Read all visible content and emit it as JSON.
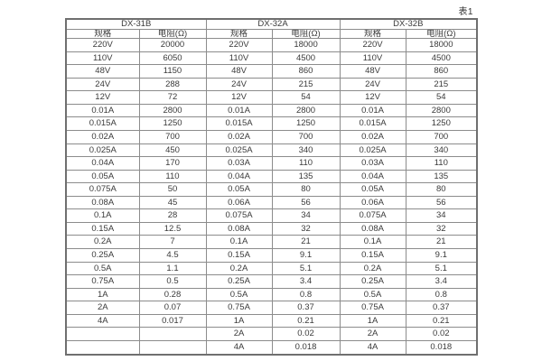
{
  "page": {
    "caption": "表1"
  },
  "colors": {
    "background": "#ffffff",
    "border_outer": "#6f6f6f",
    "border_inner": "#8c8c8c",
    "text": "#3a3a3a"
  },
  "table": {
    "col_headers": [
      "规格",
      "电阻(Ω)"
    ],
    "groups": [
      {
        "name": "DX-31B",
        "rows": [
          [
            "220V",
            "20000"
          ],
          [
            "110V",
            "6050"
          ],
          [
            "48V",
            "1150"
          ],
          [
            "24V",
            "288"
          ],
          [
            "12V",
            "72"
          ],
          [
            "0.01A",
            "2800"
          ],
          [
            "0.015A",
            "1250"
          ],
          [
            "0.02A",
            "700"
          ],
          [
            "0.025A",
            "450"
          ],
          [
            "0.04A",
            "170"
          ],
          [
            "0.05A",
            "110"
          ],
          [
            "0.075A",
            "50"
          ],
          [
            "0.08A",
            "45"
          ],
          [
            "0.1A",
            "28"
          ],
          [
            "0.15A",
            "12.5"
          ],
          [
            "0.2A",
            "7"
          ],
          [
            "0.25A",
            "4.5"
          ],
          [
            "0.5A",
            "1.1"
          ],
          [
            "0.75A",
            "0.5"
          ],
          [
            "1A",
            "0.28"
          ],
          [
            "2A",
            "0.07"
          ],
          [
            "4A",
            "0.017"
          ],
          [
            "",
            ""
          ],
          [
            "",
            ""
          ]
        ]
      },
      {
        "name": "DX-32A",
        "rows": [
          [
            "220V",
            "18000"
          ],
          [
            "110V",
            "4500"
          ],
          [
            "48V",
            "860"
          ],
          [
            "24V",
            "215"
          ],
          [
            "12V",
            "54"
          ],
          [
            "0.01A",
            "2800"
          ],
          [
            "0.015A",
            "1250"
          ],
          [
            "0.02A",
            "700"
          ],
          [
            "0.025A",
            "340"
          ],
          [
            "0.03A",
            "110"
          ],
          [
            "0.04A",
            "135"
          ],
          [
            "0.05A",
            "80"
          ],
          [
            "0.06A",
            "56"
          ],
          [
            "0.075A",
            "34"
          ],
          [
            "0.08A",
            "32"
          ],
          [
            "0.1A",
            "21"
          ],
          [
            "0.15A",
            "9.1"
          ],
          [
            "0.2A",
            "5.1"
          ],
          [
            "0.25A",
            "3.4"
          ],
          [
            "0.5A",
            "0.8"
          ],
          [
            "0.75A",
            "0.37"
          ],
          [
            "1A",
            "0.21"
          ],
          [
            "2A",
            "0.02"
          ],
          [
            "4A",
            "0.018"
          ]
        ]
      },
      {
        "name": "DX-32B",
        "rows": [
          [
            "220V",
            "18000"
          ],
          [
            "110V",
            "4500"
          ],
          [
            "48V",
            "860"
          ],
          [
            "24V",
            "215"
          ],
          [
            "12V",
            "54"
          ],
          [
            "0.01A",
            "2800"
          ],
          [
            "0.015A",
            "1250"
          ],
          [
            "0.02A",
            "700"
          ],
          [
            "0.025A",
            "340"
          ],
          [
            "0.03A",
            "110"
          ],
          [
            "0.04A",
            "135"
          ],
          [
            "0.05A",
            "80"
          ],
          [
            "0.06A",
            "56"
          ],
          [
            "0.075A",
            "34"
          ],
          [
            "0.08A",
            "32"
          ],
          [
            "0.1A",
            "21"
          ],
          [
            "0.15A",
            "9.1"
          ],
          [
            "0.2A",
            "5.1"
          ],
          [
            "0.25A",
            "3.4"
          ],
          [
            "0.5A",
            "0.8"
          ],
          [
            "0.75A",
            "0.37"
          ],
          [
            "1A",
            "0.21"
          ],
          [
            "2A",
            "0.02"
          ],
          [
            "4A",
            "0.018"
          ]
        ]
      }
    ]
  }
}
